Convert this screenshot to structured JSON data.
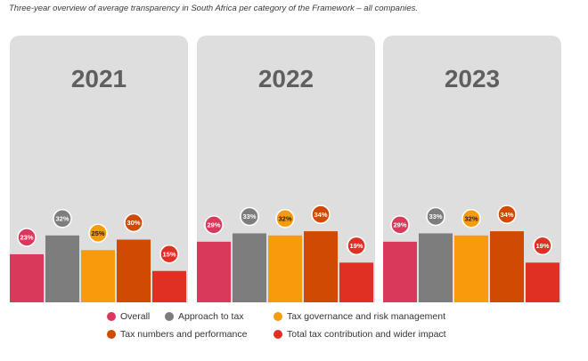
{
  "subtitle": "Three-year overview of average transparency in South Africa per category of the Framework – all companies.",
  "chart_data": {
    "type": "bar",
    "panels": [
      {
        "year": "2021",
        "values": [
          23,
          32,
          25,
          30,
          15
        ]
      },
      {
        "year": "2022",
        "values": [
          29,
          33,
          32,
          34,
          19
        ]
      },
      {
        "year": "2023",
        "values": [
          29,
          33,
          32,
          34,
          19
        ]
      }
    ],
    "series": [
      {
        "name": "Overall",
        "color": "#d93a5b"
      },
      {
        "name": "Approach to tax",
        "color": "#7d7d7d"
      },
      {
        "name": "Tax governance and risk management",
        "color": "#f79a0c"
      },
      {
        "name": "Tax numbers and performance",
        "color": "#d04a02"
      },
      {
        "name": "Total tax contribution and wider impact",
        "color": "#e03024"
      }
    ],
    "value_suffix": "%",
    "ylim": [
      0,
      100
    ],
    "legend_position": "bottom"
  }
}
